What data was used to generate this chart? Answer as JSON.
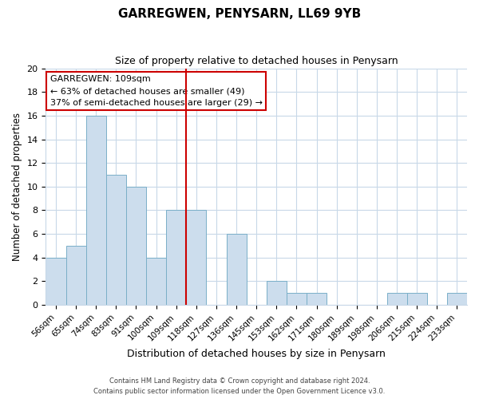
{
  "title": "GARREGWEN, PENYSARN, LL69 9YB",
  "subtitle": "Size of property relative to detached houses in Penysarn",
  "xlabel": "Distribution of detached houses by size in Penysarn",
  "ylabel": "Number of detached properties",
  "bar_labels": [
    "56sqm",
    "65sqm",
    "74sqm",
    "83sqm",
    "91sqm",
    "100sqm",
    "109sqm",
    "118sqm",
    "127sqm",
    "136sqm",
    "145sqm",
    "153sqm",
    "162sqm",
    "171sqm",
    "180sqm",
    "189sqm",
    "198sqm",
    "206sqm",
    "215sqm",
    "224sqm",
    "233sqm"
  ],
  "bar_values": [
    4,
    5,
    16,
    11,
    10,
    4,
    8,
    8,
    0,
    6,
    0,
    2,
    1,
    1,
    0,
    0,
    0,
    1,
    1,
    0,
    1
  ],
  "bar_color": "#ccdded",
  "bar_edgecolor": "#7aafc8",
  "highlight_index": 6,
  "highlight_line_color": "#cc0000",
  "annotation_title": "GARREGWEN: 109sqm",
  "annotation_line1": "← 63% of detached houses are smaller (49)",
  "annotation_line2": "37% of semi-detached houses are larger (29) →",
  "annotation_box_edgecolor": "#cc0000",
  "ylim": [
    0,
    20
  ],
  "yticks": [
    0,
    2,
    4,
    6,
    8,
    10,
    12,
    14,
    16,
    18,
    20
  ],
  "grid_color": "#c8d8e8",
  "footer_line1": "Contains HM Land Registry data © Crown copyright and database right 2024.",
  "footer_line2": "Contains public sector information licensed under the Open Government Licence v3.0.",
  "fig_width": 6.0,
  "fig_height": 5.0,
  "dpi": 100
}
